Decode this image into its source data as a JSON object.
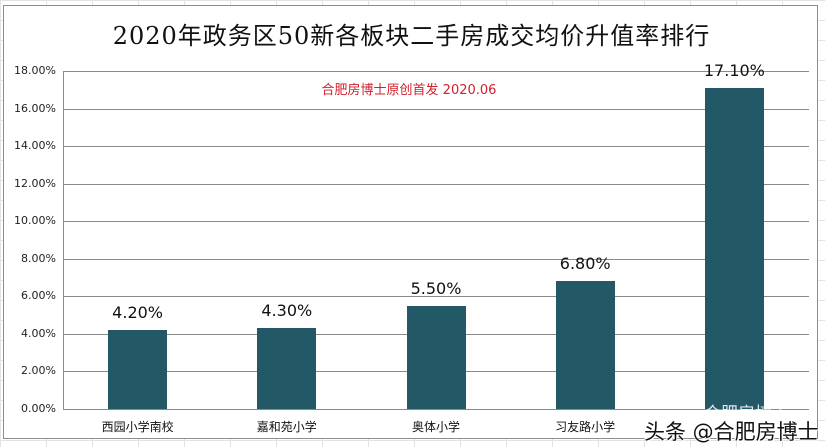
{
  "chart_data": {
    "type": "bar",
    "title": "2020年政务区50新各板块二手房成交均价升值率排行",
    "subtitle": "合肥房博士原创首发 2020.06",
    "categories": [
      "西园小学南校",
      "嘉和苑小学",
      "奥体小学",
      "习友路小学",
      ""
    ],
    "values": [
      4.2,
      4.3,
      5.5,
      6.8,
      17.1
    ],
    "value_labels": [
      "4.20%",
      "4.30%",
      "5.50%",
      "6.80%",
      "17.10%"
    ],
    "xlabel": "",
    "ylabel": "",
    "ylim": [
      0,
      18
    ],
    "yticks": [
      "0.00%",
      "2.00%",
      "4.00%",
      "6.00%",
      "8.00%",
      "10.00%",
      "12.00%",
      "14.00%",
      "16.00%",
      "18.00%"
    ],
    "grid": true,
    "legend": "none",
    "bar_color": "#235866"
  },
  "chart": {
    "title": "2020年政务区50新各板块二手房成交均价升值率排行",
    "source_note": "合肥房博士原创首发 2020.06",
    "title_color": "#111111",
    "source_note_color": "#d21f2b"
  },
  "watermark": {
    "text": "头条 @合肥房博士",
    "ghost_text": "合肥房博士"
  }
}
